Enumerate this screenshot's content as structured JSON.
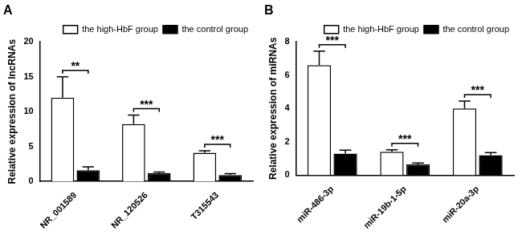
{
  "chart_data": [
    {
      "type": "bar",
      "title": "A",
      "ylabel": "Relative expression of lncRNAs",
      "categories": [
        "NR_001589",
        "NR_120526",
        "T315543"
      ],
      "series": [
        {
          "name": "the high-HbF group",
          "color": "#ffffff",
          "values": [
            12.0,
            8.2,
            4.1
          ],
          "errors": [
            3.0,
            1.3,
            0.3
          ]
        },
        {
          "name": "the control group",
          "color": "#000000",
          "values": [
            1.6,
            1.2,
            0.9
          ],
          "errors": [
            0.5,
            0.15,
            0.2
          ]
        }
      ],
      "significance": [
        "**",
        "***",
        "***"
      ],
      "ylim": [
        0,
        20
      ],
      "yticks": [
        0,
        5,
        10,
        15,
        20
      ],
      "grid": false,
      "legend": "upper right"
    },
    {
      "type": "bar",
      "title": "B",
      "ylabel": "Relative expression of miRNAs",
      "categories": [
        "miR-486-3p",
        "miR-19b-1-5p",
        "miR-20a-3p"
      ],
      "series": [
        {
          "name": "the high-HbF group",
          "color": "#ffffff",
          "values": [
            6.6,
            1.4,
            4.0
          ],
          "errors": [
            0.85,
            0.12,
            0.45
          ]
        },
        {
          "name": "the control group",
          "color": "#000000",
          "values": [
            1.3,
            0.65,
            1.2
          ],
          "errors": [
            0.2,
            0.08,
            0.15
          ]
        }
      ],
      "significance": [
        "***",
        "***",
        "***"
      ],
      "ylim": [
        0,
        8
      ],
      "yticks": [
        0,
        2,
        4,
        6,
        8
      ],
      "grid": false,
      "legend": "upper right"
    }
  ]
}
